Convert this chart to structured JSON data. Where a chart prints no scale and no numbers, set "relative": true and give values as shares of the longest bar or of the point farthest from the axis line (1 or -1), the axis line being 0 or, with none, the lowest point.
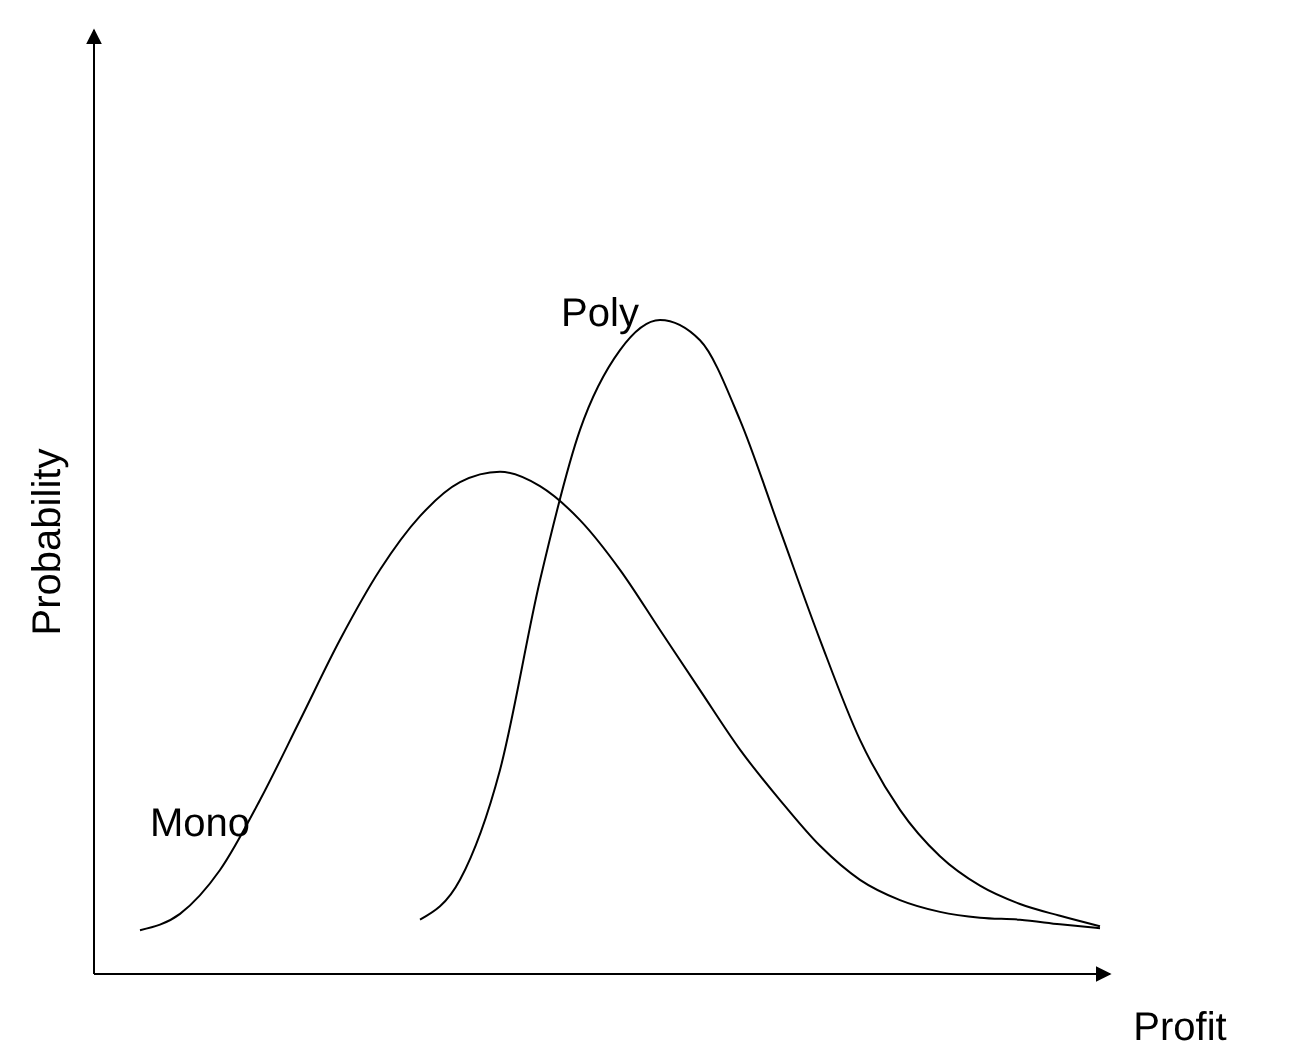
{
  "chart_data": {
    "type": "line",
    "relative": true,
    "xlabel": "Profit",
    "ylabel": "Probability",
    "marker": "none",
    "line_style": "solid",
    "categories": [
      null,
      null,
      null,
      null,
      null,
      null,
      null,
      null,
      null,
      null,
      null,
      null,
      null,
      null,
      null,
      null,
      null,
      null,
      null,
      null,
      null,
      null,
      null,
      null,
      null
    ],
    "series": [
      {
        "name": "Mono",
        "color": "#000000",
        "values": [
          0.067,
          0.092,
          0.159,
          0.266,
          0.388,
          0.511,
          0.618,
          0.7,
          0.752,
          0.768,
          0.746,
          0.694,
          0.618,
          0.526,
          0.434,
          0.343,
          0.266,
          0.196,
          0.144,
          0.113,
          0.095,
          0.086,
          0.083,
          0.076,
          0.07
        ]
      },
      {
        "name": "Poly",
        "color": "#000000",
        "values": [
          null,
          null,
          null,
          null,
          null,
          null,
          null,
          0.083,
          0.144,
          0.312,
          0.602,
          0.832,
          0.954,
          1,
          0.969,
          0.847,
          0.679,
          0.511,
          0.358,
          0.251,
          0.18,
          0.135,
          0.107,
          0.089,
          0.073
        ]
      }
    ]
  }
}
